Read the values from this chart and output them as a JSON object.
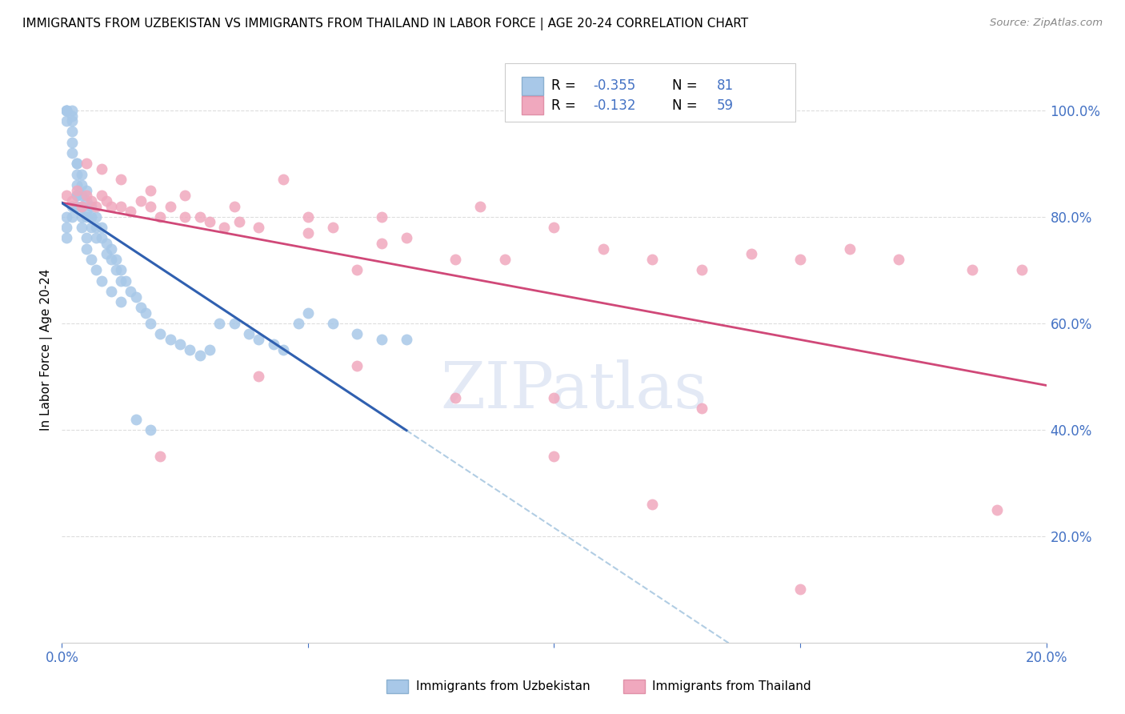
{
  "title": "IMMIGRANTS FROM UZBEKISTAN VS IMMIGRANTS FROM THAILAND IN LABOR FORCE | AGE 20-24 CORRELATION CHART",
  "source": "Source: ZipAtlas.com",
  "ylabel": "In Labor Force | Age 20-24",
  "watermark": "ZIPatlas",
  "legend_labels": [
    "Immigrants from Uzbekistan",
    "Immigrants from Thailand"
  ],
  "r_uzbekistan": -0.355,
  "n_uzbekistan": 81,
  "r_thailand": -0.132,
  "n_thailand": 59,
  "uzbekistan_color": "#a8c8e8",
  "thailand_color": "#f0a8be",
  "uzbekistan_line_color": "#3060b0",
  "thailand_line_color": "#d04878",
  "dashed_color": "#90b8d8",
  "xmin": 0.0,
  "xmax": 0.2,
  "ymin": 0.0,
  "ymax": 1.1,
  "y_ticks_right": [
    0.2,
    0.4,
    0.6,
    0.8,
    1.0
  ],
  "y_tick_labels_right": [
    "20.0%",
    "40.0%",
    "60.0%",
    "80.0%",
    "100.0%"
  ]
}
